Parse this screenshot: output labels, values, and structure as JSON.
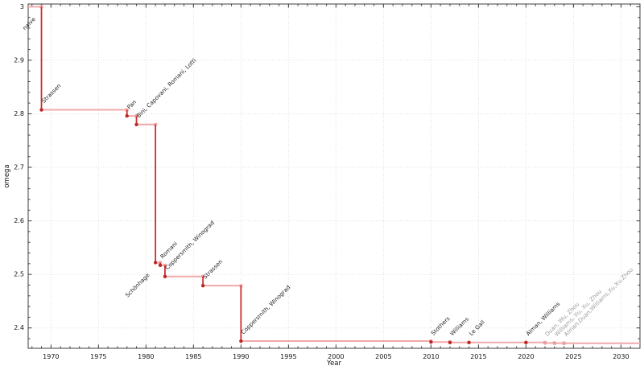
{
  "chart_data": {
    "type": "line",
    "style": "step-post",
    "title": "",
    "xlabel": "Year",
    "ylabel": "omega",
    "xlim": [
      1967.6,
      2032.0
    ],
    "ylim": [
      2.362,
      3.005
    ],
    "x_ticks": [
      1970,
      1975,
      1980,
      1985,
      1990,
      1995,
      2000,
      2005,
      2010,
      2015,
      2020,
      2025,
      2030
    ],
    "x_minor_step": 1,
    "y_ticks": [
      {
        "v": 2.4,
        "label": "2.4"
      },
      {
        "v": 2.5,
        "label": "2.5"
      },
      {
        "v": 2.6,
        "label": "2.6"
      },
      {
        "v": 2.7,
        "label": "2.7"
      },
      {
        "v": 2.8,
        "label": "2.8"
      },
      {
        "v": 2.9,
        "label": "2.9"
      },
      {
        "v": 3.0,
        "label": "3"
      }
    ],
    "y_minor_step": 0.02,
    "grid": "dotted-at-major-ticks",
    "legend": "none",
    "colors": {
      "step_line": "#f2a9a9",
      "drop_line": "#cd2f2f",
      "marker": "#bf2626",
      "pending_marker": "#e59f9f",
      "corner_marker": "#f2a9a9",
      "label": "#1f1f1f",
      "pending_label": "#9c9c9c"
    },
    "points": [
      {
        "label": "naive",
        "year": null,
        "x": null,
        "label_at_x": 1969,
        "omega": 3,
        "side": "below",
        "pending": false
      },
      {
        "label": "Strassen",
        "year": 1969,
        "x": 1969,
        "omega": 2.8074,
        "side": "above",
        "pending": false
      },
      {
        "label": "Pan",
        "year": 1978,
        "x": 1978,
        "omega": 2.796,
        "side": "above",
        "pending": false
      },
      {
        "label": "Bini, Capovani, Romani, Lotti",
        "year": 1979,
        "x": 1979,
        "omega": 2.78,
        "side": "above",
        "pending": false
      },
      {
        "label": "Schönhage",
        "year": 1981,
        "x": 1981,
        "omega": 2.522,
        "side": "below",
        "pending": false
      },
      {
        "label": "Romani",
        "year": 1982,
        "x": 1981.5,
        "omega": 2.517,
        "side": "above",
        "pending": false
      },
      {
        "label": "Coppersmith, Winograd",
        "year": 1982,
        "x": 1982,
        "omega": 2.496,
        "side": "above",
        "pending": false
      },
      {
        "label": "Strassen",
        "year": 1986,
        "x": 1986,
        "omega": 2.479,
        "side": "above",
        "pending": false
      },
      {
        "label": "Coppersmith, Winograd",
        "year": 1990,
        "x": 1990,
        "omega": 2.3755,
        "side": "above",
        "pending": false
      },
      {
        "label": "Stothers",
        "year": 2010,
        "x": 2010,
        "omega": 2.3737,
        "side": "above",
        "pending": false
      },
      {
        "label": "Williams",
        "year": 2012,
        "x": 2012,
        "omega": 2.37287,
        "side": "above",
        "pending": false
      },
      {
        "label": "Le Gall",
        "year": 2014,
        "x": 2014,
        "omega": 2.372864,
        "side": "above",
        "pending": false
      },
      {
        "label": "Alman, Williams",
        "year": 2020,
        "x": 2020,
        "omega": 2.37286,
        "side": "above",
        "pending": false
      },
      {
        "label": "Duan, Wu, Zhou",
        "year": 2022,
        "x": 2022,
        "omega": 2.3719,
        "side": "above",
        "pending": true
      },
      {
        "label": "Williams, Xu, Xu, Zhou",
        "year": 2023,
        "x": 2023,
        "omega": 2.37155,
        "side": "above",
        "pending": true
      },
      {
        "label": "Alman,Duan,Williams,Xu,Xu,Zhou",
        "year": 2024,
        "x": 2024,
        "omega": 2.37134,
        "side": "above",
        "pending": true
      }
    ]
  }
}
